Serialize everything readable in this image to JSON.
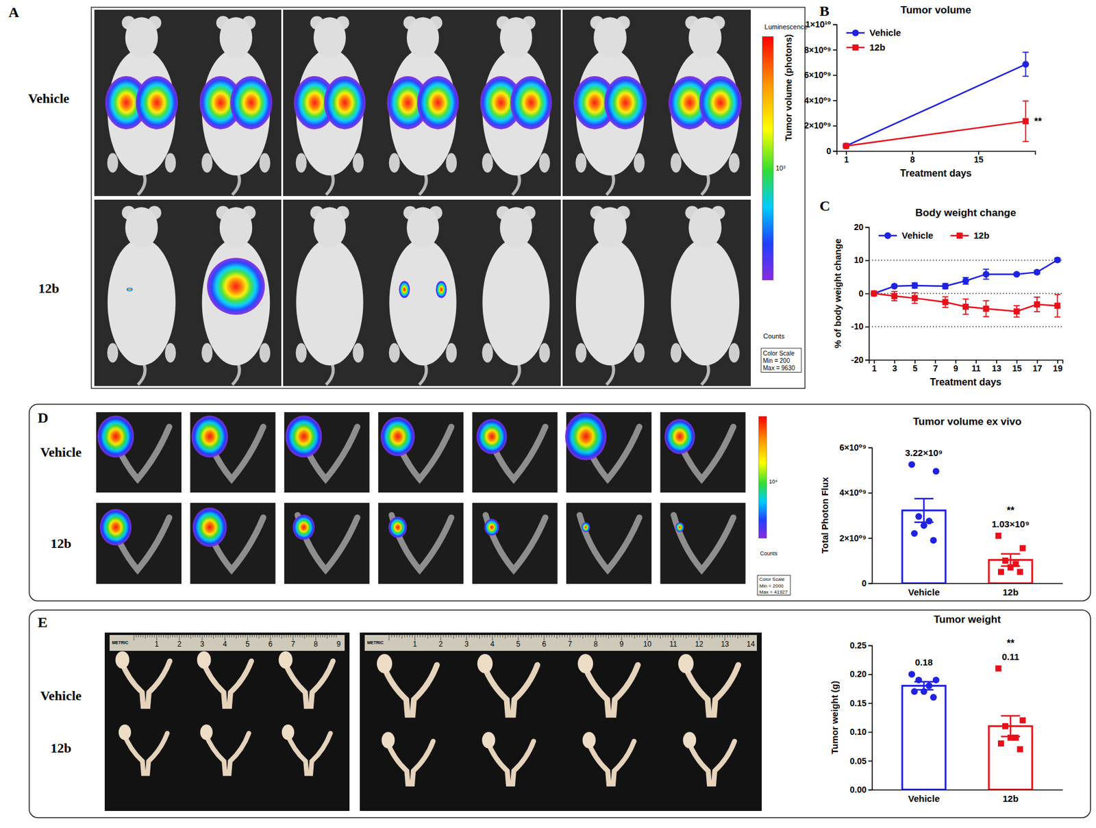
{
  "chart_data": [
    {
      "type": "line",
      "panel": "B",
      "title": "Tumor volume",
      "x_label": "Treatment days",
      "y_label": "Tumor volume (photons)",
      "x": [
        1,
        20
      ],
      "xlim": [
        0,
        21
      ],
      "xticks": [
        1,
        8,
        15
      ],
      "ylim": [
        0,
        10000000000
      ],
      "yticks": [
        0,
        {
          "value": 2000000000,
          "label": "2×10⁰⁹"
        },
        {
          "value": 4000000000,
          "label": "4×10⁰⁹"
        },
        {
          "value": 6000000000,
          "label": "6×10⁰⁹"
        },
        {
          "value": 8000000000,
          "label": "8×10⁰⁹"
        },
        {
          "value": 10000000000,
          "label": "1×10¹⁰"
        }
      ],
      "legend": "top-left",
      "series": [
        {
          "name": "Vehicle",
          "color": "#1f22e0",
          "marker": "circle",
          "values": [
            400000000,
            6850000000
          ],
          "errors": [
            0,
            950000000
          ]
        },
        {
          "name": "12b",
          "color": "#e8101a",
          "marker": "square",
          "values": [
            400000000,
            2350000000
          ],
          "errors": [
            0,
            1600000000
          ],
          "annotation": "**"
        }
      ]
    },
    {
      "type": "line",
      "panel": "C",
      "title": "Body weight change",
      "x_label": "Treatment days",
      "y_label": "% of body weight change",
      "x": [
        1,
        3,
        5,
        8,
        10,
        12,
        15,
        17,
        19
      ],
      "xlim": [
        0.5,
        19.5
      ],
      "xticks": [
        1,
        3,
        5,
        7,
        9,
        11,
        13,
        15,
        17,
        19
      ],
      "ylim": [
        -20,
        20
      ],
      "yticks": [
        -20,
        -10,
        0,
        10,
        20
      ],
      "hlines": [
        -10,
        0,
        10
      ],
      "legend": "top-left",
      "series": [
        {
          "name": "Vehicle",
          "color": "#1f22e0",
          "marker": "circle",
          "values": [
            0,
            2.2,
            2.4,
            2.2,
            3.8,
            5.8,
            5.8,
            6.4,
            10.1
          ],
          "errors": [
            0,
            0.3,
            0.8,
            0.8,
            1.0,
            1.5,
            0.3,
            0.5,
            0.6
          ]
        },
        {
          "name": "12b",
          "color": "#e8101a",
          "marker": "square",
          "values": [
            0,
            -0.8,
            -1.4,
            -2.6,
            -4.0,
            -4.6,
            -5.4,
            -3.3,
            -3.7
          ],
          "errors": [
            0,
            1.4,
            1.6,
            1.6,
            2.3,
            2.4,
            1.7,
            2.2,
            3.4
          ]
        }
      ]
    },
    {
      "type": "bar",
      "title": "Tumor volume ex vivo",
      "y_label": "Total Photon Flux",
      "categories": [
        "Vehicle",
        "12b"
      ],
      "values": [
        3220000000,
        1030000000
      ],
      "value_labels": [
        "3.22×10⁹",
        "1.03×10⁹"
      ],
      "errors": [
        520000000,
        270000000
      ],
      "colors": [
        "#1f22e0",
        "#e8101a"
      ],
      "data_labels": true,
      "points": [
        [
          5250000000,
          4950000000,
          2950000000,
          2750000000,
          2550000000,
          2200000000,
          1900000000
        ],
        [
          2100000000,
          1550000000,
          1000000000,
          850000000,
          700000000,
          500000000,
          500000000
        ]
      ],
      "annotation": {
        "category": "12b",
        "text": "**"
      },
      "ylim": [
        0,
        6000000000
      ],
      "yticks": [
        0,
        {
          "value": 2000000000,
          "label": "2×10⁰⁹"
        },
        {
          "value": 4000000000,
          "label": "4×10⁰⁹"
        },
        {
          "value": 6000000000,
          "label": "6×10⁰⁹"
        }
      ]
    },
    {
      "type": "bar",
      "title": "Tumor weight",
      "y_label": "Tumor weight (g)",
      "categories": [
        "Vehicle",
        "12b"
      ],
      "values": [
        0.18,
        0.11
      ],
      "errors": [
        0.007,
        0.018
      ],
      "colors": [
        "#1f22e0",
        "#e8101a"
      ],
      "data_labels": true,
      "points": [
        [
          0.2,
          0.19,
          0.19,
          0.18,
          0.17,
          0.17,
          0.16
        ],
        [
          0.21,
          0.12,
          0.11,
          0.09,
          0.09,
          0.08,
          0.07
        ]
      ],
      "annotation": {
        "category": "12b",
        "text": "**"
      },
      "ylim": [
        0,
        0.25
      ],
      "yticks": [
        {
          "value": 0,
          "label": "0.00"
        },
        {
          "value": 0.05,
          "label": "0.05"
        },
        {
          "value": 0.1,
          "label": "0.10"
        },
        {
          "value": 0.15,
          "label": "0.15"
        },
        {
          "value": 0.2,
          "label": "0.20"
        },
        {
          "value": 0.25,
          "label": "0.25"
        }
      ]
    }
  ],
  "panels": {
    "A": {
      "label": "A",
      "rows": [
        "Vehicle",
        "12b"
      ],
      "colorbar": {
        "title": "Luminescence",
        "tick": "10³",
        "unit": "Counts",
        "scale_title": "Color Scale",
        "min": "Min = 200",
        "max": "Max = 9630"
      }
    },
    "D": {
      "label": "D",
      "rows": [
        "Vehicle",
        "12b"
      ],
      "colorbar": {
        "tick": "10⁴",
        "unit": "Counts",
        "scale_title": "Color Scale",
        "min": "Min = 2000",
        "max": "Max = 41927"
      }
    },
    "E": {
      "label": "E",
      "rows": [
        "Vehicle",
        "12b"
      ],
      "rulers": [
        {
          "title": "METRIC",
          "labels": [
            1,
            2,
            3,
            4,
            5,
            6,
            7,
            8,
            9
          ]
        },
        {
          "title": "METRIC",
          "labels": [
            1,
            2,
            3,
            4,
            5,
            6,
            7,
            8,
            9,
            10,
            11,
            12,
            13,
            14
          ]
        }
      ]
    }
  }
}
